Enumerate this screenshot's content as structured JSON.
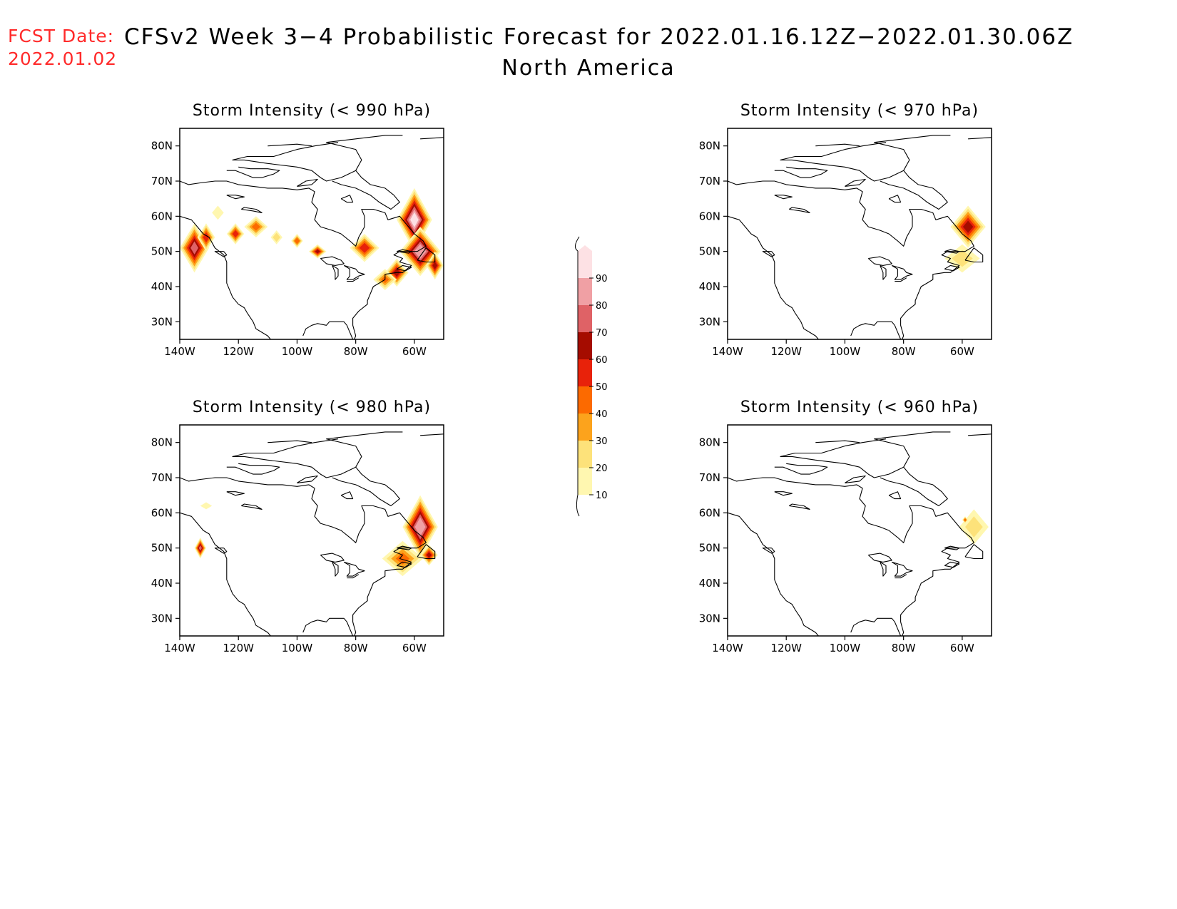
{
  "header": {
    "fcst_label": "FCST Date:",
    "fcst_date": "2022.01.02",
    "title": "CFSv2 Week 3−4 Probabilistic Forecast for 2022.01.16.12Z−2022.01.30.06Z",
    "region": "North America"
  },
  "axes": {
    "lat_ticks": [
      "80N",
      "70N",
      "60N",
      "50N",
      "40N",
      "30N"
    ],
    "lon_ticks": [
      "140W",
      "120W",
      "100W",
      "80W",
      "60W"
    ],
    "lat_values": [
      80,
      70,
      60,
      50,
      40,
      30
    ],
    "lon_values": [
      -140,
      -120,
      -100,
      -80,
      -60
    ],
    "lat_range": [
      25,
      85
    ],
    "lon_range": [
      -140,
      -50
    ]
  },
  "colorbar": {
    "levels": [
      "10",
      "20",
      "30",
      "40",
      "50",
      "60",
      "70",
      "80",
      "90"
    ],
    "colors": [
      "#fff7b0",
      "#fde27a",
      "#fca31c",
      "#fc6a00",
      "#e8220a",
      "#a50c00",
      "#df6266",
      "#f0a0a4",
      "#fde1e4"
    ]
  },
  "panels": [
    {
      "title": "Storm Intensity (< 990 hPa)",
      "blobs": [
        {
          "lon": -135,
          "lat": 51,
          "rlon": 5,
          "rlat": 7,
          "p": 72
        },
        {
          "lon": -131,
          "lat": 54,
          "rlon": 3,
          "rlat": 4,
          "p": 55
        },
        {
          "lon": -127,
          "lat": 61,
          "rlon": 2,
          "rlat": 2,
          "p": 18
        },
        {
          "lon": -121,
          "lat": 55,
          "rlon": 3,
          "rlat": 3,
          "p": 55
        },
        {
          "lon": -114,
          "lat": 57,
          "rlon": 4,
          "rlat": 3,
          "p": 42
        },
        {
          "lon": -107,
          "lat": 54,
          "rlon": 2,
          "rlat": 2,
          "p": 25
        },
        {
          "lon": -100,
          "lat": 53,
          "rlon": 2,
          "rlat": 2,
          "p": 48
        },
        {
          "lon": -93,
          "lat": 50,
          "rlon": 3,
          "rlat": 2,
          "p": 60
        },
        {
          "lon": -77,
          "lat": 51,
          "rlon": 5,
          "rlat": 4,
          "p": 55
        },
        {
          "lon": -60,
          "lat": 59,
          "rlon": 6,
          "rlat": 9,
          "p": 92
        },
        {
          "lon": -58,
          "lat": 50,
          "rlon": 7,
          "rlat": 7,
          "p": 88
        },
        {
          "lon": -66,
          "lat": 44,
          "rlon": 4,
          "rlat": 4,
          "p": 62
        },
        {
          "lon": -70,
          "lat": 42,
          "rlon": 4,
          "rlat": 3,
          "p": 40
        },
        {
          "lon": -53,
          "lat": 46,
          "rlon": 3,
          "rlat": 4,
          "p": 60
        }
      ]
    },
    {
      "title": "Storm Intensity (< 970 hPa)",
      "blobs": [
        {
          "lon": -58,
          "lat": 57,
          "rlon": 6,
          "rlat": 6,
          "p": 62
        },
        {
          "lon": -60,
          "lat": 48,
          "rlon": 6,
          "rlat": 4,
          "p": 22
        }
      ]
    },
    {
      "title": "Storm Intensity (< 980 hPa)",
      "blobs": [
        {
          "lon": -133,
          "lat": 50,
          "rlon": 2,
          "rlat": 3,
          "p": 72
        },
        {
          "lon": -131,
          "lat": 62,
          "rlon": 2,
          "rlat": 1,
          "p": 15
        },
        {
          "lon": -58,
          "lat": 56,
          "rlon": 6,
          "rlat": 9,
          "p": 88
        },
        {
          "lon": -64,
          "lat": 47,
          "rlon": 7,
          "rlat": 5,
          "p": 40
        },
        {
          "lon": -55,
          "lat": 48,
          "rlon": 3,
          "rlat": 3,
          "p": 60
        }
      ]
    },
    {
      "title": "Storm Intensity (< 960 hPa)",
      "blobs": [
        {
          "lon": -56,
          "lat": 56,
          "rlon": 5,
          "rlat": 5,
          "p": 22
        },
        {
          "lon": -59,
          "lat": 58,
          "rlon": 1,
          "rlat": 1,
          "p": 45
        }
      ]
    }
  ]
}
